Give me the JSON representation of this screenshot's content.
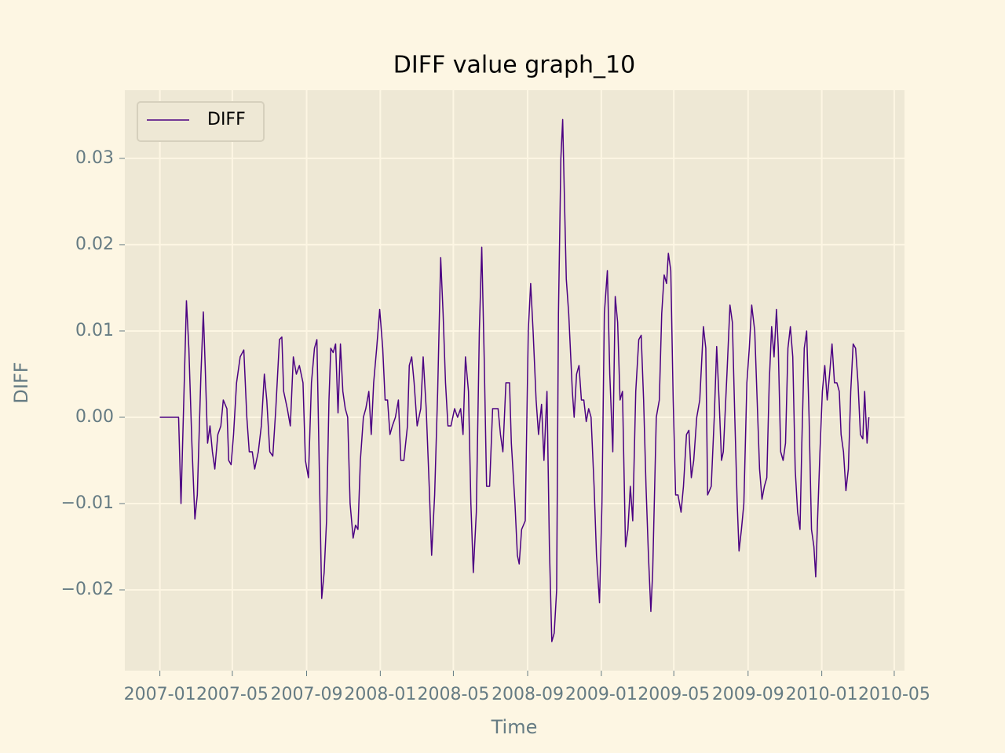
{
  "chart_data": {
    "type": "line",
    "title": "DIFF value graph_10",
    "xlabel": "Time",
    "ylabel": "DIFF",
    "x": [
      "2007-01-01",
      "2007-02-01",
      "2007-02-05",
      "2007-02-10",
      "2007-02-14",
      "2007-02-18",
      "2007-02-23",
      "2007-02-28",
      "2007-03-04",
      "2007-03-10",
      "2007-03-14",
      "2007-03-17",
      "2007-03-21",
      "2007-03-25",
      "2007-03-29",
      "2007-04-02",
      "2007-04-07",
      "2007-04-12",
      "2007-04-16",
      "2007-04-22",
      "2007-04-25",
      "2007-04-29",
      "2007-05-03",
      "2007-05-08",
      "2007-05-14",
      "2007-05-20",
      "2007-05-25",
      "2007-05-29",
      "2007-06-03",
      "2007-06-07",
      "2007-06-13",
      "2007-06-18",
      "2007-06-23",
      "2007-06-27",
      "2007-07-02",
      "2007-07-07",
      "2007-07-12",
      "2007-07-18",
      "2007-07-22",
      "2007-07-25",
      "2007-07-31",
      "2007-08-05",
      "2007-08-10",
      "2007-08-15",
      "2007-08-20",
      "2007-08-26",
      "2007-08-30",
      "2007-09-04",
      "2007-09-09",
      "2007-09-14",
      "2007-09-18",
      "2007-09-22",
      "2007-09-26",
      "2007-09-30",
      "2007-10-04",
      "2007-10-08",
      "2007-10-11",
      "2007-10-15",
      "2007-10-19",
      "2007-10-23",
      "2007-10-27",
      "2007-10-31",
      "2007-11-04",
      "2007-11-08",
      "2007-11-12",
      "2007-11-17",
      "2007-11-21",
      "2007-11-25",
      "2007-11-29",
      "2007-12-04",
      "2007-12-08",
      "2007-12-13",
      "2007-12-17",
      "2007-12-21",
      "2007-12-26",
      "2007-12-31",
      "2008-01-05",
      "2008-01-09",
      "2008-01-13",
      "2008-01-17",
      "2008-01-21",
      "2008-01-26",
      "2008-01-31",
      "2008-02-04",
      "2008-02-09",
      "2008-02-15",
      "2008-02-18",
      "2008-02-22",
      "2008-02-26",
      "2008-03-02",
      "2008-03-08",
      "2008-03-12",
      "2008-03-17",
      "2008-03-22",
      "2008-03-26",
      "2008-03-31",
      "2008-04-05",
      "2008-04-10",
      "2008-04-14",
      "2008-04-18",
      "2008-04-22",
      "2008-04-27",
      "2008-05-03",
      "2008-05-08",
      "2008-05-13",
      "2008-05-17",
      "2008-05-21",
      "2008-05-26",
      "2008-05-30",
      "2008-06-03",
      "2008-06-08",
      "2008-06-13",
      "2008-06-17",
      "2008-06-21",
      "2008-06-25",
      "2008-06-30",
      "2008-07-05",
      "2008-07-10",
      "2008-07-14",
      "2008-07-18",
      "2008-07-22",
      "2008-07-27",
      "2008-08-02",
      "2008-08-05",
      "2008-08-11",
      "2008-08-15",
      "2008-08-18",
      "2008-08-22",
      "2008-08-28",
      "2008-09-02",
      "2008-09-06",
      "2008-09-10",
      "2008-09-15",
      "2008-09-19",
      "2008-09-24",
      "2008-09-28",
      "2008-10-03",
      "2008-10-07",
      "2008-10-11",
      "2008-10-15",
      "2008-10-19",
      "2008-10-22",
      "2008-10-26",
      "2008-10-29",
      "2008-11-01",
      "2008-11-04",
      "2008-11-08",
      "2008-11-14",
      "2008-11-17",
      "2008-11-21",
      "2008-11-25",
      "2008-11-29",
      "2008-12-03",
      "2008-12-07",
      "2008-12-11",
      "2008-12-15",
      "2008-12-20",
      "2008-12-24",
      "2008-12-29",
      "2009-01-02",
      "2009-01-06",
      "2009-01-11",
      "2009-01-15",
      "2009-01-20",
      "2009-01-24",
      "2009-01-28",
      "2009-02-01",
      "2009-02-05",
      "2009-02-10",
      "2009-02-14",
      "2009-02-18",
      "2009-02-22",
      "2009-02-27",
      "2009-03-04",
      "2009-03-08",
      "2009-03-12",
      "2009-03-16",
      "2009-03-20",
      "2009-03-24",
      "2009-03-27",
      "2009-04-02",
      "2009-04-07",
      "2009-04-11",
      "2009-04-15",
      "2009-04-19",
      "2009-04-22",
      "2009-04-26",
      "2009-04-30",
      "2009-05-04",
      "2009-05-08",
      "2009-05-13",
      "2009-05-17",
      "2009-05-22",
      "2009-05-26",
      "2009-05-30",
      "2009-06-03",
      "2009-06-08",
      "2009-06-13",
      "2009-06-19",
      "2009-06-23",
      "2009-06-26",
      "2009-07-02",
      "2009-07-07",
      "2009-07-11",
      "2009-07-15",
      "2009-07-19",
      "2009-07-22",
      "2009-07-28",
      "2009-08-02",
      "2009-08-06",
      "2009-08-10",
      "2009-08-14",
      "2009-08-17",
      "2009-08-21",
      "2009-08-25",
      "2009-08-30",
      "2009-09-03",
      "2009-09-07",
      "2009-09-12",
      "2009-09-16",
      "2009-09-20",
      "2009-09-24",
      "2009-09-28",
      "2009-10-02",
      "2009-10-06",
      "2009-10-10",
      "2009-10-14",
      "2009-10-18",
      "2009-10-21",
      "2009-10-25",
      "2009-10-29",
      "2009-11-02",
      "2009-11-06",
      "2009-11-10",
      "2009-11-14",
      "2009-11-18",
      "2009-11-22",
      "2009-11-26",
      "2009-11-29",
      "2009-12-03",
      "2009-12-07",
      "2009-12-11",
      "2009-12-15",
      "2009-12-19",
      "2009-12-22",
      "2009-12-25",
      "2009-12-29",
      "2010-01-02",
      "2010-01-06",
      "2010-01-10",
      "2010-01-14",
      "2010-01-18",
      "2010-01-22",
      "2010-01-26",
      "2010-01-30",
      "2010-02-02",
      "2010-02-06",
      "2010-02-10",
      "2010-02-14",
      "2010-02-18",
      "2010-02-22",
      "2010-02-26",
      "2010-03-02",
      "2010-03-06",
      "2010-03-10",
      "2010-03-13",
      "2010-03-17",
      "2010-03-20"
    ],
    "series": [
      {
        "name": "DIFF",
        "color": "#4b0082",
        "values": [
          0,
          0,
          -0.01,
          0.003,
          0.0135,
          0.008,
          -0.003,
          -0.0118,
          -0.009,
          0.005,
          0.0122,
          0.006,
          -0.003,
          -0.001,
          -0.004,
          -0.006,
          -0.002,
          -0.001,
          0.002,
          0.001,
          -0.005,
          -0.0055,
          -0.002,
          0.004,
          0.007,
          0.0078,
          0.0,
          -0.004,
          -0.004,
          -0.006,
          -0.004,
          -0.001,
          0.005,
          0.002,
          -0.004,
          -0.0045,
          0.001,
          0.009,
          0.0093,
          0.003,
          0.001,
          -0.001,
          0.007,
          0.005,
          0.006,
          0.004,
          -0.005,
          -0.007,
          0.004,
          0.008,
          0.009,
          -0.006,
          -0.021,
          -0.018,
          -0.012,
          0.002,
          0.008,
          0.0075,
          0.0085,
          0.0005,
          0.0085,
          0.003,
          0.001,
          0.0,
          -0.01,
          -0.014,
          -0.0125,
          -0.013,
          -0.005,
          0.0,
          0.001,
          0.003,
          -0.002,
          0.004,
          0.008,
          0.0125,
          0.008,
          0.002,
          0.002,
          -0.002,
          -0.001,
          0.0,
          0.002,
          -0.005,
          -0.005,
          -0.001,
          0.006,
          0.007,
          0.004,
          -0.001,
          0.001,
          0.007,
          0.001,
          -0.008,
          -0.016,
          -0.009,
          0.003,
          0.0185,
          0.012,
          0.004,
          -0.001,
          -0.001,
          0.001,
          0.0,
          0.001,
          -0.002,
          0.007,
          0.003,
          -0.01,
          -0.018,
          -0.011,
          0.01,
          0.0197,
          0.007,
          -0.008,
          -0.008,
          0.001,
          0.001,
          0.001,
          -0.002,
          -0.004,
          0.004,
          0.004,
          -0.003,
          -0.01,
          -0.016,
          -0.017,
          -0.013,
          -0.012,
          0.01,
          0.0155,
          0.01,
          0.002,
          -0.002,
          0.0015,
          -0.005,
          0.003,
          -0.015,
          -0.026,
          -0.025,
          -0.02,
          0.012,
          0.03,
          0.0345,
          0.025,
          0.016,
          0.012,
          0.003,
          0.0,
          0.005,
          0.006,
          0.002,
          0.002,
          -0.0005,
          0.001,
          0.0,
          -0.008,
          -0.016,
          -0.0215,
          -0.01,
          0.012,
          0.017,
          0.005,
          -0.004,
          0.014,
          0.011,
          0.002,
          0.003,
          -0.015,
          -0.013,
          -0.008,
          -0.012,
          0.003,
          0.009,
          0.0095,
          0.002,
          -0.008,
          -0.016,
          -0.0225,
          -0.018,
          0.0,
          0.002,
          0.012,
          0.0165,
          0.0155,
          0.019,
          0.017,
          0.002,
          -0.009,
          -0.009,
          -0.011,
          -0.008,
          -0.002,
          -0.0015,
          -0.007,
          -0.005,
          0.0,
          0.002,
          0.0105,
          0.008,
          -0.009,
          -0.008,
          0.0,
          0.0082,
          0.002,
          -0.005,
          -0.004,
          0.005,
          0.013,
          0.011,
          0.0,
          -0.01,
          -0.0155,
          -0.013,
          -0.01,
          0.004,
          0.008,
          0.013,
          0.01,
          0.002,
          -0.006,
          -0.0095,
          -0.008,
          -0.007,
          0.004,
          0.0105,
          0.007,
          0.0125,
          0.008,
          -0.004,
          -0.005,
          -0.003,
          0.008,
          0.0105,
          0.007,
          -0.006,
          -0.011,
          -0.013,
          -0.003,
          0.008,
          0.01,
          0.0,
          -0.013,
          -0.015,
          -0.0185,
          -0.012,
          -0.004,
          0.003,
          0.006,
          0.002,
          0.005,
          0.0085,
          0.004,
          0.004,
          0.003,
          -0.002,
          -0.004,
          -0.0085,
          -0.006,
          0.003,
          0.0085,
          0.008,
          0.004,
          -0.002,
          -0.0025,
          0.003,
          -0.003,
          0.0
        ]
      }
    ],
    "xlim": [
      "2006-11-04",
      "2010-05-18"
    ],
    "xticks": [
      {
        "value": "2007-01-01",
        "label": "2007-01"
      },
      {
        "value": "2007-05-01",
        "label": "2007-05"
      },
      {
        "value": "2007-09-01",
        "label": "2007-09"
      },
      {
        "value": "2008-01-01",
        "label": "2008-01"
      },
      {
        "value": "2008-05-01",
        "label": "2008-05"
      },
      {
        "value": "2008-09-01",
        "label": "2008-09"
      },
      {
        "value": "2009-01-01",
        "label": "2009-01"
      },
      {
        "value": "2009-05-01",
        "label": "2009-05"
      },
      {
        "value": "2009-09-01",
        "label": "2009-09"
      },
      {
        "value": "2010-01-01",
        "label": "2010-01"
      },
      {
        "value": "2010-05-01",
        "label": "2010-05"
      }
    ],
    "ylim": [
      -0.02936,
      0.0379
    ],
    "yticks": [
      {
        "value": -0.02,
        "label": "−0.02"
      },
      {
        "value": -0.01,
        "label": "−0.01"
      },
      {
        "value": 0,
        "label": "0.00"
      },
      0.01,
      0.02,
      0.03
    ],
    "grid": true,
    "legend": "upper left"
  }
}
